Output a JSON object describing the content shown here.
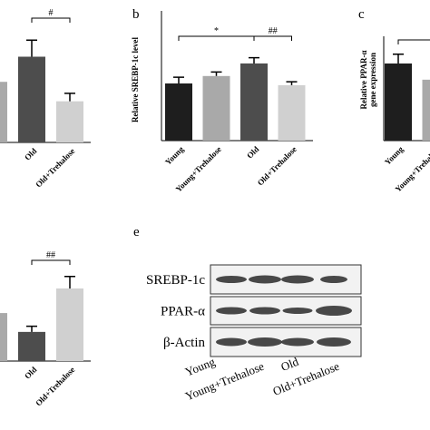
{
  "chart_data": [
    {
      "type": "bar",
      "categories": [
        null,
        "Old",
        "Old+Trehalose"
      ],
      "values": [
        1.06,
        1.5,
        0.72
      ],
      "errors": [
        0,
        0.29,
        0.14
      ],
      "colors": [
        "#a9a9a9",
        "#4d4d4d",
        "#d0d0d0"
      ],
      "annotations": [
        {
          "text": "#",
          "between": [
            1,
            2
          ]
        }
      ]
    },
    {
      "type": "bar",
      "panel": "b",
      "ylabel": "Relative SREBP-1c level",
      "categories": [
        "Young",
        "Young+Trehalose",
        "Old",
        "Old+Trehalose"
      ],
      "values": [
        1.0,
        1.13,
        1.35,
        0.97
      ],
      "errors": [
        0.11,
        0.07,
        0.1,
        0.06
      ],
      "colors": [
        "#1e1e1e",
        "#a9a9a9",
        "#4d4d4d",
        "#d0d0d0"
      ],
      "annotations": [
        {
          "text": "*",
          "between": [
            0,
            2
          ]
        },
        {
          "text": "##",
          "between": [
            2,
            3
          ]
        }
      ]
    },
    {
      "type": "bar",
      "panel": "c",
      "ylabel": [
        "Relative PPAR-α",
        "gene expression"
      ],
      "categories": [
        "Young",
        "Young+Trehalose"
      ],
      "values": [
        1.0,
        0.79
      ],
      "errors": [
        0.12,
        0
      ],
      "colors": [
        "#1e1e1e",
        "#a9a9a9"
      ],
      "annotations": [
        {
          "text": "",
          "between": [
            0,
            1
          ]
        }
      ]
    },
    {
      "type": "bar",
      "categories": [
        null,
        "Old",
        "Old+Trehalose"
      ],
      "values": [
        0.84,
        0.51,
        1.27
      ],
      "errors": [
        0,
        0.1,
        0.21
      ],
      "colors": [
        "#a9a9a9",
        "#4d4d4d",
        "#d0d0d0"
      ],
      "annotations": [
        {
          "text": "##",
          "between": [
            1,
            2
          ]
        }
      ]
    }
  ],
  "blot": {
    "panel": "e",
    "rows": [
      "SREBP-1c",
      "PPAR-α",
      "β-Actin"
    ],
    "lanes": [
      "Young",
      "Young+Trehalose",
      "Old",
      "Old+Trehalose"
    ]
  }
}
